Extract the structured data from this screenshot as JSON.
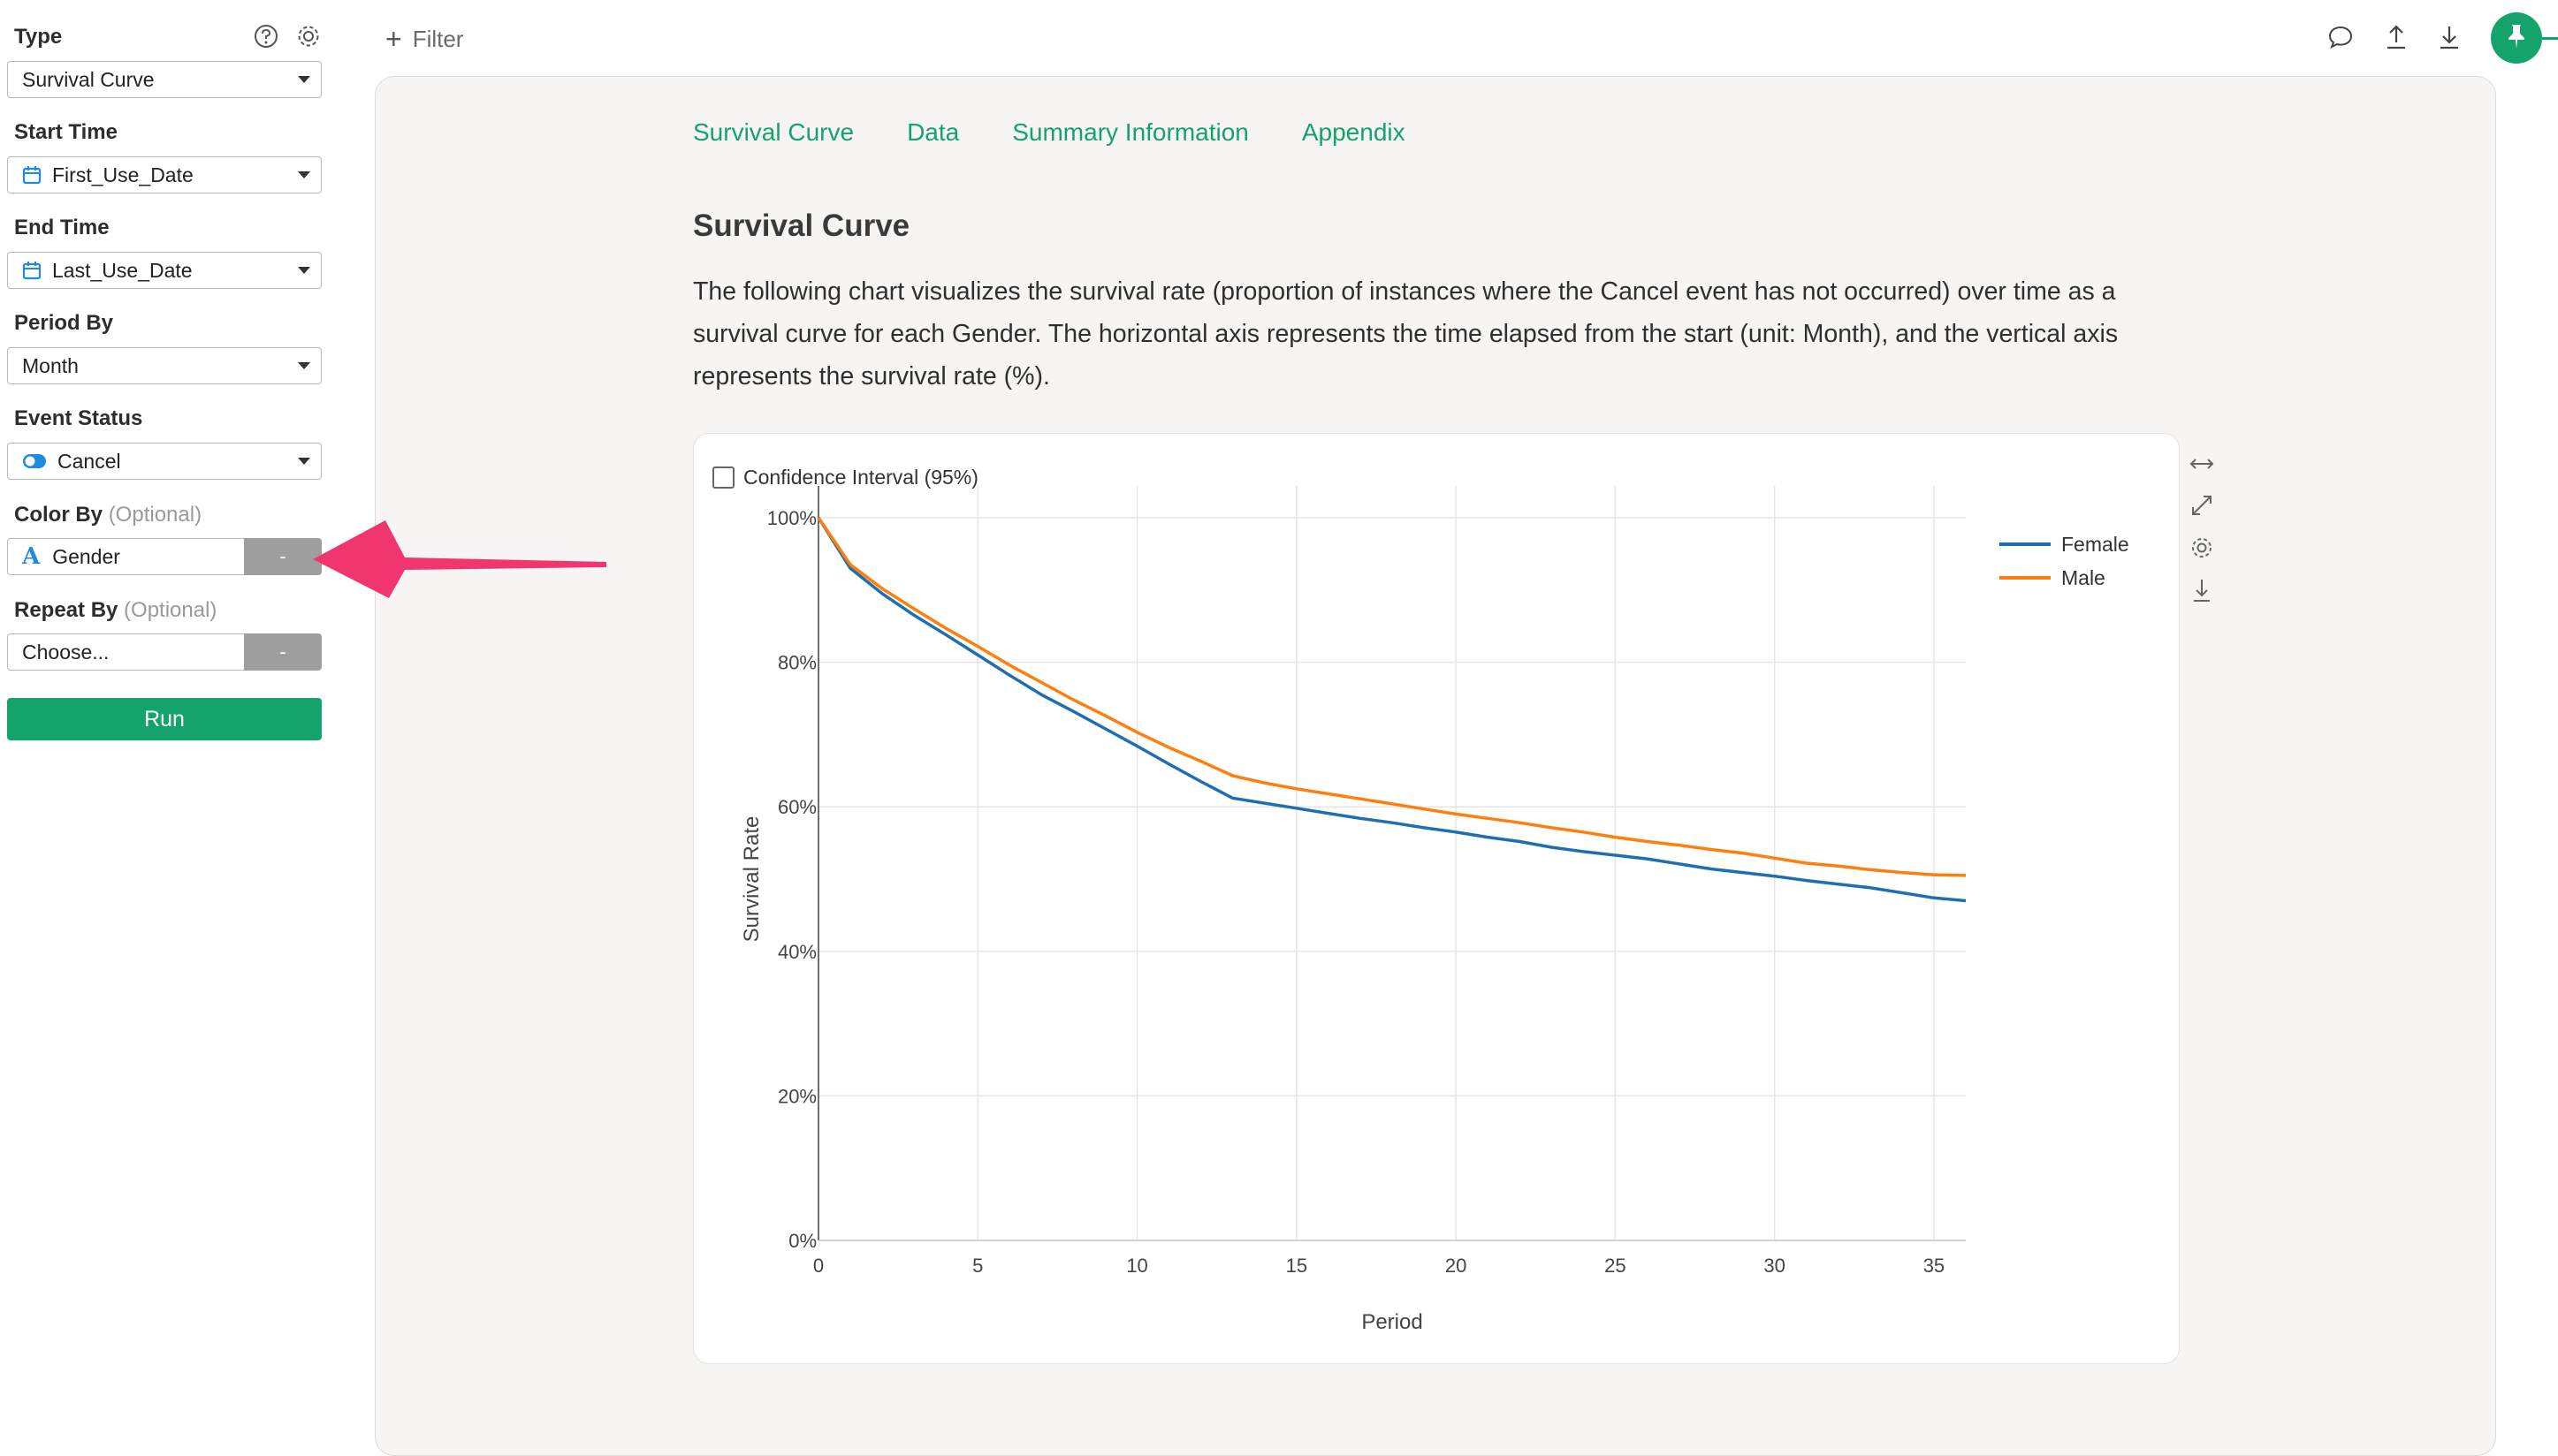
{
  "sidebar": {
    "type": {
      "label": "Type",
      "value": "Survival Curve"
    },
    "start_time": {
      "label": "Start Time",
      "value": "First_Use_Date"
    },
    "end_time": {
      "label": "End Time",
      "value": "Last_Use_Date"
    },
    "period_by": {
      "label": "Period By",
      "value": "Month"
    },
    "event_status": {
      "label": "Event Status",
      "value": "Cancel"
    },
    "color_by": {
      "label": "Color By",
      "optional": "(Optional)",
      "value": "Gender",
      "button": "-"
    },
    "repeat_by": {
      "label": "Repeat By",
      "optional": "(Optional)",
      "value": "Choose...",
      "button": "-"
    },
    "run_label": "Run"
  },
  "topbar": {
    "filter_label": "Filter"
  },
  "tabs": [
    "Survival Curve",
    "Data",
    "Summary Information",
    "Appendix"
  ],
  "report": {
    "title": "Survival Curve",
    "description": "The following chart visualizes the survival rate (proportion of instances where the Cancel event has not occurred) over time as a survival curve for each Gender. The horizontal axis represents the time elapsed from the start (unit: Month), and the vertical axis represents the survival rate (%).",
    "ci_label": "Confidence Interval (95%)"
  },
  "colors": {
    "accent": "#14a46b",
    "female": "#1f6fb0",
    "male": "#ff7f0e",
    "annotation": "#f0356f"
  },
  "chart_data": {
    "type": "line",
    "xlabel": "Period",
    "ylabel": "Survival Rate",
    "xlim": [
      0,
      36
    ],
    "ylim": [
      0,
      100
    ],
    "xticks": [
      "0",
      "5",
      "10",
      "15",
      "20",
      "25",
      "30",
      "35"
    ],
    "yticks": [
      "0%",
      "20%",
      "40%",
      "60%",
      "80%",
      "100%"
    ],
    "grid": true,
    "legend": "top-right",
    "x": [
      0,
      1,
      2,
      3,
      4,
      5,
      6,
      7,
      8,
      9,
      10,
      11,
      12,
      13,
      14,
      15,
      16,
      17,
      18,
      19,
      20,
      21,
      22,
      23,
      24,
      25,
      26,
      27,
      28,
      29,
      30,
      31,
      32,
      33,
      34,
      35,
      36
    ],
    "series": [
      {
        "name": "Female",
        "values": [
          100,
          93,
          89.5,
          86.5,
          83.8,
          81,
          78.2,
          75.5,
          73.2,
          70.8,
          68.4,
          65.9,
          63.5,
          61.2,
          60.5,
          59.8,
          59.1,
          58.4,
          57.8,
          57.1,
          56.5,
          55.8,
          55.2,
          54.4,
          53.8,
          53.3,
          52.8,
          52.1,
          51.4,
          50.9,
          50.4,
          49.8,
          49.3,
          48.8,
          48.1,
          47.4,
          47
        ]
      },
      {
        "name": "Male",
        "values": [
          100,
          93.5,
          90.2,
          87.4,
          84.7,
          82.2,
          79.6,
          77.2,
          74.8,
          72.6,
          70.3,
          68.2,
          66.3,
          64.3,
          63.3,
          62.5,
          61.8,
          61.1,
          60.4,
          59.7,
          59,
          58.4,
          57.8,
          57.1,
          56.5,
          55.8,
          55.2,
          54.7,
          54.1,
          53.6,
          52.9,
          52.2,
          51.8,
          51.3,
          50.9,
          50.6,
          50.5
        ]
      }
    ]
  }
}
